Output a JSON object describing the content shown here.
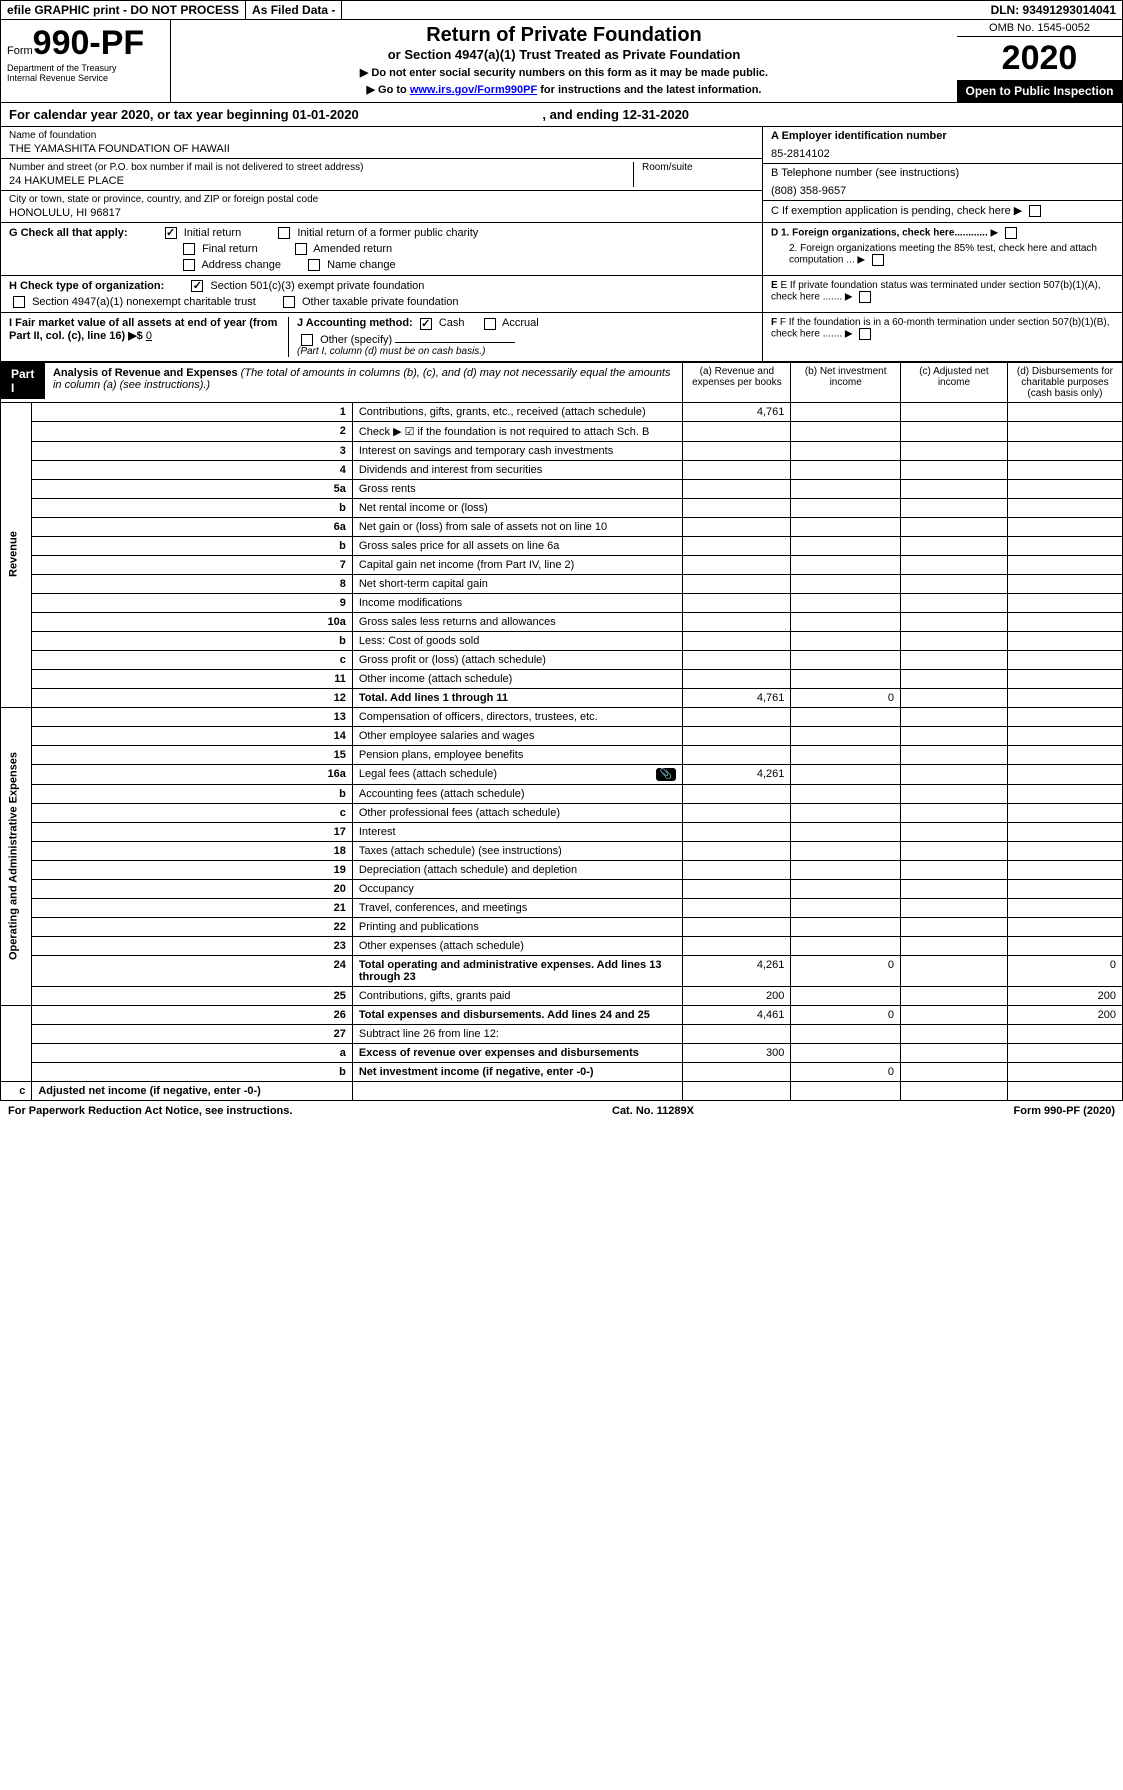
{
  "top": {
    "efile": "efile GRAPHIC print - DO NOT PROCESS",
    "asfiled": "As Filed Data -",
    "dln": "DLN: 93491293014041"
  },
  "header": {
    "form_prefix": "Form",
    "form_number": "990-PF",
    "dept": "Department of the Treasury",
    "irs": "Internal Revenue Service",
    "title": "Return of Private Foundation",
    "subtitle": "or Section 4947(a)(1) Trust Treated as Private Foundation",
    "instr1": "▶ Do not enter social security numbers on this form as it may be made public.",
    "instr2_pre": "▶ Go to ",
    "instr2_link": "www.irs.gov/Form990PF",
    "instr2_post": " for instructions and the latest information.",
    "omb": "OMB No. 1545-0052",
    "year": "2020",
    "inspection": "Open to Public Inspection"
  },
  "calyear": {
    "text_pre": "For calendar year 2020, or tax year beginning ",
    "begin": "01-01-2020",
    "text_mid": " , and ending ",
    "end": "12-31-2020"
  },
  "foundation": {
    "name_label": "Name of foundation",
    "name": "THE YAMASHITA FOUNDATION OF HAWAII",
    "addr_label": "Number and street (or P.O. box number if mail is not delivered to street address)",
    "room_label": "Room/suite",
    "addr": "24 HAKUMELE PLACE",
    "city_label": "City or town, state or province, country, and ZIP or foreign postal code",
    "city": "HONOLULU, HI  96817"
  },
  "right": {
    "a_label": "A Employer identification number",
    "a_val": "85-2814102",
    "b_label": "B Telephone number (see instructions)",
    "b_val": "(808) 358-9657",
    "c_label": "C If exemption application is pending, check here",
    "d1": "D 1. Foreign organizations, check here............",
    "d2": "2. Foreign organizations meeting the 85% test, check here and attach computation ...",
    "e": "E If private foundation status was terminated under section 507(b)(1)(A), check here .......",
    "f": "F If the foundation is in a 60-month termination under section 507(b)(1)(B), check here ......."
  },
  "g": {
    "label": "G Check all that apply:",
    "opts": [
      "Initial return",
      "Initial return of a former public charity",
      "Final return",
      "Amended return",
      "Address change",
      "Name change"
    ]
  },
  "h": {
    "label": "H Check type of organization:",
    "opt1": "Section 501(c)(3) exempt private foundation",
    "opt2": "Section 4947(a)(1) nonexempt charitable trust",
    "opt3": "Other taxable private foundation"
  },
  "i": {
    "label": "I Fair market value of all assets at end of year (from Part II, col. (c), line 16) ▶$",
    "val": "0"
  },
  "j": {
    "label": "J Accounting method:",
    "cash": "Cash",
    "accrual": "Accrual",
    "other": "Other (specify)",
    "note": "(Part I, column (d) must be on cash basis.)"
  },
  "part1": {
    "label": "Part I",
    "title": "Analysis of Revenue and Expenses",
    "desc": " (The total of amounts in columns (b), (c), and (d) may not necessarily equal the amounts in column (a) (see instructions).)",
    "cols": {
      "a": "(a) Revenue and expenses per books",
      "b": "(b) Net investment income",
      "c": "(c) Adjusted net income",
      "d": "(d) Disbursements for charitable purposes (cash basis only)"
    }
  },
  "side": {
    "revenue": "Revenue",
    "expenses": "Operating and Administrative Expenses"
  },
  "rows": [
    {
      "n": "1",
      "d": "Contributions, gifts, grants, etc., received (attach schedule)",
      "a": "4,761"
    },
    {
      "n": "2",
      "d": "Check ▶ ☑ if the foundation is not required to attach Sch. B"
    },
    {
      "n": "3",
      "d": "Interest on savings and temporary cash investments"
    },
    {
      "n": "4",
      "d": "Dividends and interest from securities"
    },
    {
      "n": "5a",
      "d": "Gross rents"
    },
    {
      "n": "b",
      "d": "Net rental income or (loss)"
    },
    {
      "n": "6a",
      "d": "Net gain or (loss) from sale of assets not on line 10"
    },
    {
      "n": "b",
      "d": "Gross sales price for all assets on line 6a"
    },
    {
      "n": "7",
      "d": "Capital gain net income (from Part IV, line 2)"
    },
    {
      "n": "8",
      "d": "Net short-term capital gain"
    },
    {
      "n": "9",
      "d": "Income modifications"
    },
    {
      "n": "10a",
      "d": "Gross sales less returns and allowances"
    },
    {
      "n": "b",
      "d": "Less: Cost of goods sold"
    },
    {
      "n": "c",
      "d": "Gross profit or (loss) (attach schedule)"
    },
    {
      "n": "11",
      "d": "Other income (attach schedule)"
    },
    {
      "n": "12",
      "d": "Total. Add lines 1 through 11",
      "a": "4,761",
      "b": "0",
      "bold": true
    },
    {
      "n": "13",
      "d": "Compensation of officers, directors, trustees, etc."
    },
    {
      "n": "14",
      "d": "Other employee salaries and wages"
    },
    {
      "n": "15",
      "d": "Pension plans, employee benefits"
    },
    {
      "n": "16a",
      "d": "Legal fees (attach schedule)",
      "a": "4,261",
      "icon": true
    },
    {
      "n": "b",
      "d": "Accounting fees (attach schedule)"
    },
    {
      "n": "c",
      "d": "Other professional fees (attach schedule)"
    },
    {
      "n": "17",
      "d": "Interest"
    },
    {
      "n": "18",
      "d": "Taxes (attach schedule) (see instructions)"
    },
    {
      "n": "19",
      "d": "Depreciation (attach schedule) and depletion"
    },
    {
      "n": "20",
      "d": "Occupancy"
    },
    {
      "n": "21",
      "d": "Travel, conferences, and meetings"
    },
    {
      "n": "22",
      "d": "Printing and publications"
    },
    {
      "n": "23",
      "d": "Other expenses (attach schedule)"
    },
    {
      "n": "24",
      "d": "Total operating and administrative expenses. Add lines 13 through 23",
      "a": "4,261",
      "b": "0",
      "dd": "0",
      "bold": true
    },
    {
      "n": "25",
      "d": "Contributions, gifts, grants paid",
      "a": "200",
      "dd": "200"
    },
    {
      "n": "26",
      "d": "Total expenses and disbursements. Add lines 24 and 25",
      "a": "4,461",
      "b": "0",
      "dd": "200",
      "bold": true
    },
    {
      "n": "27",
      "d": "Subtract line 26 from line 12:"
    },
    {
      "n": "a",
      "d": "Excess of revenue over expenses and disbursements",
      "a": "300",
      "bold": true
    },
    {
      "n": "b",
      "d": "Net investment income (if negative, enter -0-)",
      "b": "0",
      "bold": true
    },
    {
      "n": "c",
      "d": "Adjusted net income (if negative, enter -0-)",
      "bold": true
    }
  ],
  "footer": {
    "left": "For Paperwork Reduction Act Notice, see instructions.",
    "mid": "Cat. No. 11289X",
    "right": "Form 990-PF (2020)"
  }
}
